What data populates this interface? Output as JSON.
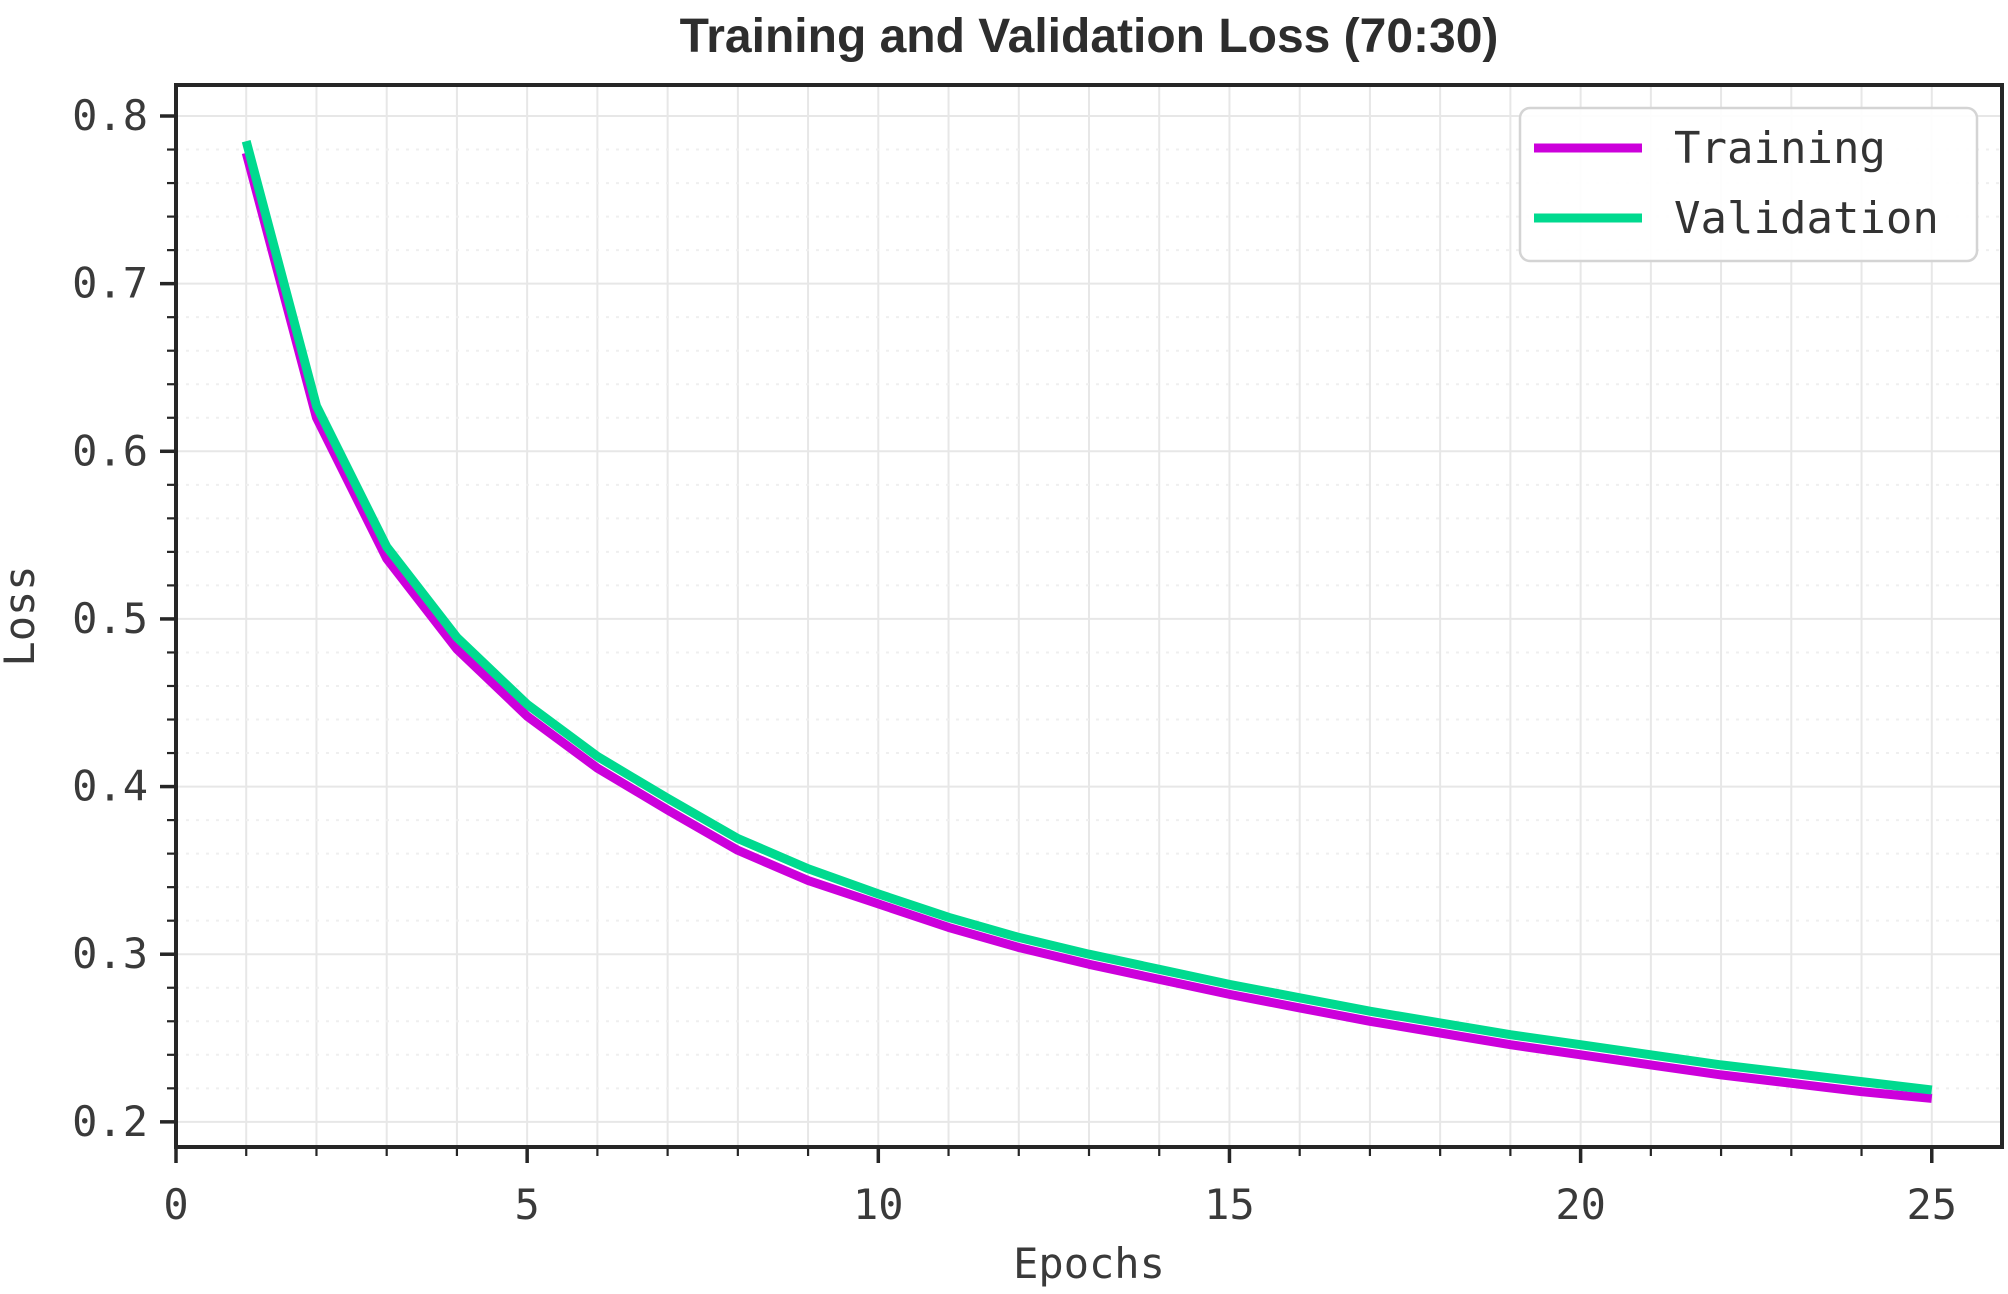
{
  "chart_data": {
    "type": "line",
    "title": "Training and Validation Loss (70:30)",
    "xlabel": "Epochs",
    "ylabel": "Loss",
    "x": [
      1,
      2,
      3,
      4,
      5,
      6,
      7,
      8,
      9,
      10,
      11,
      12,
      13,
      14,
      15,
      16,
      17,
      18,
      19,
      20,
      21,
      22,
      23,
      24,
      25
    ],
    "series": [
      {
        "name": "Training",
        "color": "#CC00DB",
        "values": [
          0.778,
          0.62,
          0.536,
          0.482,
          0.442,
          0.411,
          0.386,
          0.362,
          0.344,
          0.33,
          0.316,
          0.304,
          0.294,
          0.285,
          0.276,
          0.268,
          0.26,
          0.253,
          0.246,
          0.24,
          0.234,
          0.228,
          0.223,
          0.218,
          0.214
        ]
      },
      {
        "name": "Validation",
        "color": "#00DA8F",
        "values": [
          0.785,
          0.627,
          0.543,
          0.489,
          0.449,
          0.418,
          0.393,
          0.369,
          0.351,
          0.336,
          0.322,
          0.31,
          0.3,
          0.291,
          0.282,
          0.274,
          0.266,
          0.259,
          0.252,
          0.246,
          0.24,
          0.234,
          0.229,
          0.224,
          0.219
        ]
      }
    ],
    "xlim": [
      0,
      26
    ],
    "ylim": [
      0.185,
      0.8185
    ],
    "xticks": [
      0,
      5,
      10,
      15,
      20,
      25
    ],
    "yticks": [
      0.2,
      0.3,
      0.4,
      0.5,
      0.6,
      0.7,
      0.8
    ],
    "x_minor_step": 1,
    "y_minor_step": 0.02,
    "grid": true,
    "legend_position": "upper right",
    "line_width": 9,
    "colors": {
      "axis": "#262626",
      "grid_major": "#e7e7e7",
      "grid_minor": "#efefef",
      "tick_label": "#3a3a3a",
      "title": "#2d2d2d",
      "legend_border": "#d4d4d4",
      "legend_bg": "#ffffff"
    }
  }
}
